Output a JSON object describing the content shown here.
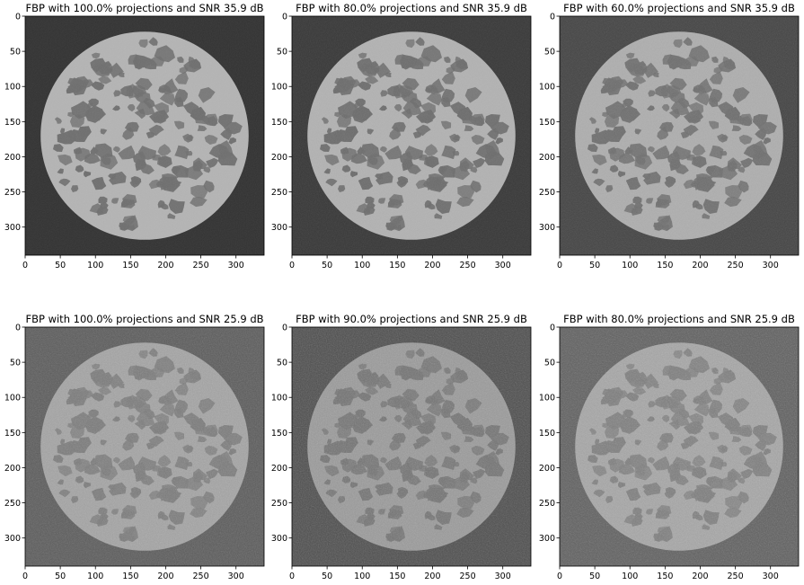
{
  "chart_data": [
    {
      "type": "heatmap",
      "title": "FBP with 100.0% projections and SNR 35.9 dB",
      "xlim": [
        0,
        340
      ],
      "ylim": [
        340,
        0
      ],
      "xticks": [
        0,
        50,
        100,
        150,
        200,
        250,
        300
      ],
      "yticks": [
        0,
        50,
        100,
        150,
        200,
        250,
        300
      ],
      "colormap": "gray",
      "background": "#323232",
      "disk": "#b4b4b4",
      "grain": "#6e6e6e",
      "noise": 0.1
    },
    {
      "type": "heatmap",
      "title": "FBP with 80.0% projections and SNR 35.9 dB",
      "xlim": [
        0,
        340
      ],
      "ylim": [
        340,
        0
      ],
      "xticks": [
        0,
        50,
        100,
        150,
        200,
        250,
        300
      ],
      "yticks": [
        0,
        50,
        100,
        150,
        200,
        250,
        300
      ],
      "colormap": "gray",
      "background": "#383838",
      "disk": "#b2b2b2",
      "grain": "#6c6c6c",
      "noise": 0.14
    },
    {
      "type": "heatmap",
      "title": "FBP with 60.0% projections and SNR 35.9 dB",
      "xlim": [
        0,
        340
      ],
      "ylim": [
        340,
        0
      ],
      "xticks": [
        0,
        50,
        100,
        150,
        200,
        250,
        300
      ],
      "yticks": [
        0,
        50,
        100,
        150,
        200,
        250,
        300
      ],
      "colormap": "gray",
      "background": "#444444",
      "disk": "#aeaeae",
      "grain": "#6e6e6e",
      "noise": 0.18
    },
    {
      "type": "heatmap",
      "title": "FBP with 100.0% projections and SNR 25.9 dB",
      "xlim": [
        0,
        340
      ],
      "ylim": [
        340,
        0
      ],
      "xticks": [
        0,
        50,
        100,
        150,
        200,
        250,
        300
      ],
      "yticks": [
        0,
        50,
        100,
        150,
        200,
        250,
        300
      ],
      "colormap": "gray",
      "background": "#5a5a5a",
      "disk": "#a4a4a4",
      "grain": "#7a7a7a",
      "noise": 0.3
    },
    {
      "type": "heatmap",
      "title": "FBP with 90.0% projections and SNR 25.9 dB",
      "xlim": [
        0,
        340
      ],
      "ylim": [
        340,
        0
      ],
      "xticks": [
        0,
        50,
        100,
        150,
        200,
        250,
        300
      ],
      "yticks": [
        0,
        50,
        100,
        150,
        200,
        250,
        300
      ],
      "colormap": "gray",
      "background": "#4c4c4c",
      "disk": "#9a9a9a",
      "grain": "#727272",
      "noise": 0.32
    },
    {
      "type": "heatmap",
      "title": "FBP with 80.0% projections and SNR 25.9 dB",
      "xlim": [
        0,
        340
      ],
      "ylim": [
        340,
        0
      ],
      "xticks": [
        0,
        50,
        100,
        150,
        200,
        250,
        300
      ],
      "yticks": [
        0,
        50,
        100,
        150,
        200,
        250,
        300
      ],
      "colormap": "gray",
      "background": "#5e5e5e",
      "disk": "#a6a6a6",
      "grain": "#7c7c7c",
      "noise": 0.34
    }
  ]
}
